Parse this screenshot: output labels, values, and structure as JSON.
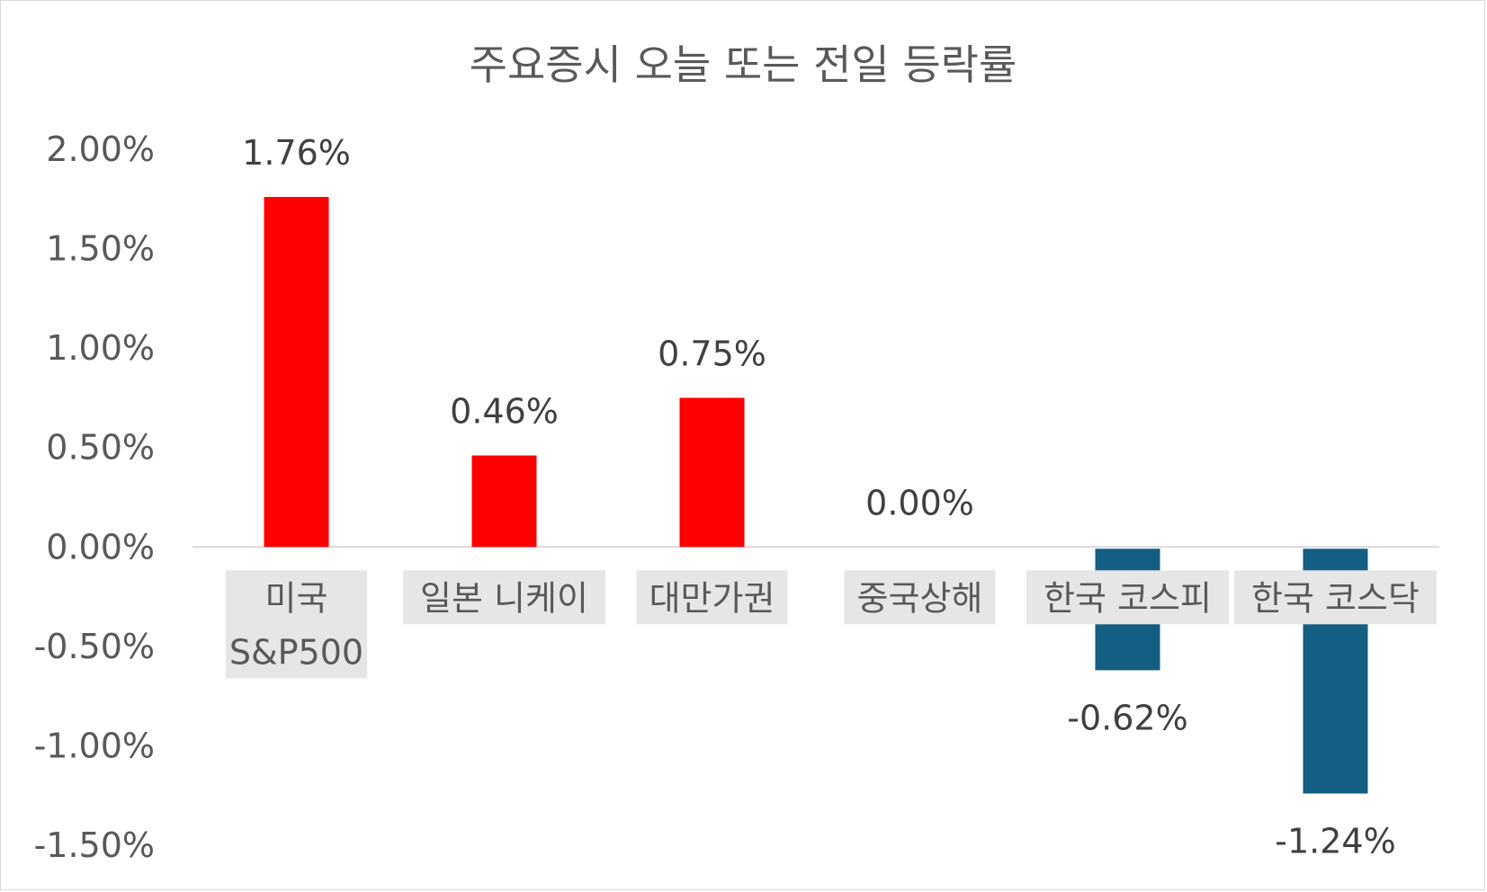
{
  "chart_data": {
    "type": "bar",
    "title": "주요증시 오늘 또는 전일 등락률",
    "xlabel": "",
    "ylabel": "",
    "categories": [
      "미국 S&P500",
      "일본 니케이",
      "대만가권",
      "중국상해",
      "한국 코스피",
      "한국 코스닥"
    ],
    "values": [
      1.76,
      0.46,
      0.75,
      0.0,
      -0.62,
      -1.24
    ],
    "value_labels": [
      "1.76%",
      "0.46%",
      "0.75%",
      "0.00%",
      "-0.62%",
      "-1.24%"
    ],
    "ylim": [
      -1.5,
      2.0
    ],
    "yticks": [
      2.0,
      1.5,
      1.0,
      0.5,
      0.0,
      -0.5,
      -1.0,
      -1.5
    ],
    "ytick_labels": [
      "2.00%",
      "1.50%",
      "1.00%",
      "0.50%",
      "0.00%",
      "-0.50%",
      "-1.00%",
      "-1.50%"
    ],
    "grid": false,
    "legend": "none",
    "colors": {
      "positive": "#ff0000",
      "negative": "#135e82",
      "axis_line": "#d9d9d9",
      "category_label_bg": "#e7e6e6",
      "text": "#595959"
    }
  }
}
